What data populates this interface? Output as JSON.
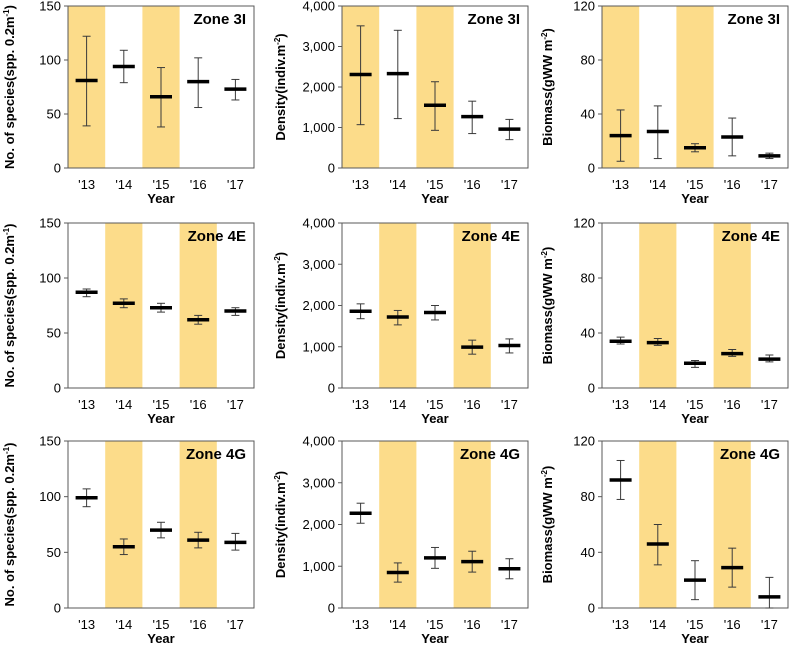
{
  "figure": {
    "x_title": "Year",
    "highlight_color": "#FCDC8A",
    "years": [
      "'13",
      "'14",
      "'15",
      "'16",
      "'17"
    ],
    "metrics": [
      {
        "key": "species",
        "ylabel": "No. of species(spp. 0.2m",
        "ylabel_sup": "-1",
        "ylabel_end": ")"
      },
      {
        "key": "density",
        "ylabel": "Density(indiv.m",
        "ylabel_sup": "-2",
        "ylabel_end": ")"
      },
      {
        "key": "biomass",
        "ylabel": "Biomass(gWW m",
        "ylabel_sup": "-2",
        "ylabel_end": ")"
      }
    ]
  },
  "chart_data": [
    {
      "type": "error-bar",
      "zone": "Zone 3I",
      "metric": "species",
      "categories": [
        "'13",
        "'14",
        "'15",
        "'16",
        "'17"
      ],
      "values": [
        81,
        94,
        66,
        80,
        73
      ],
      "err_low": [
        39,
        79,
        38,
        56,
        63
      ],
      "err_high": [
        122,
        109,
        93,
        102,
        82
      ],
      "highlighted": [
        "'13",
        "'15"
      ],
      "ylim": [
        0,
        150
      ],
      "yticks": [
        "0",
        "50",
        "100",
        "150"
      ]
    },
    {
      "type": "error-bar",
      "zone": "Zone 3I",
      "metric": "density",
      "categories": [
        "'13",
        "'14",
        "'15",
        "'16",
        "'17"
      ],
      "values": [
        2310,
        2330,
        1550,
        1270,
        960
      ],
      "err_low": [
        1070,
        1220,
        930,
        850,
        700
      ],
      "err_high": [
        3510,
        3400,
        2130,
        1650,
        1200
      ],
      "highlighted": [
        "'13",
        "'15"
      ],
      "ylim": [
        0,
        4000
      ],
      "yticks": [
        "0",
        "1,000",
        "2,000",
        "3,000",
        "4,000"
      ]
    },
    {
      "type": "error-bar",
      "zone": "Zone 3I",
      "metric": "biomass",
      "categories": [
        "'13",
        "'14",
        "'15",
        "'16",
        "'17"
      ],
      "values": [
        24,
        27,
        15,
        23,
        9
      ],
      "err_low": [
        5,
        7,
        12,
        9,
        7
      ],
      "err_high": [
        43,
        46,
        18,
        37,
        11
      ],
      "highlighted": [
        "'13",
        "'15"
      ],
      "ylim": [
        0,
        120
      ],
      "yticks": [
        "0",
        "40",
        "80",
        "120"
      ]
    },
    {
      "type": "error-bar",
      "zone": "Zone 4E",
      "metric": "species",
      "categories": [
        "'13",
        "'14",
        "'15",
        "'16",
        "'17"
      ],
      "values": [
        87,
        77,
        73,
        62,
        70
      ],
      "err_low": [
        83,
        73,
        69,
        58,
        66
      ],
      "err_high": [
        90,
        81,
        77,
        66,
        73
      ],
      "highlighted": [
        "'14",
        "'16"
      ],
      "ylim": [
        0,
        150
      ],
      "yticks": [
        "0",
        "50",
        "100",
        "150"
      ]
    },
    {
      "type": "error-bar",
      "zone": "Zone 4E",
      "metric": "density",
      "categories": [
        "'13",
        "'14",
        "'15",
        "'16",
        "'17"
      ],
      "values": [
        1860,
        1720,
        1830,
        990,
        1030
      ],
      "err_low": [
        1680,
        1530,
        1650,
        820,
        850
      ],
      "err_high": [
        2040,
        1880,
        2000,
        1160,
        1190
      ],
      "highlighted": [
        "'14",
        "'16"
      ],
      "ylim": [
        0,
        4000
      ],
      "yticks": [
        "0",
        "1,000",
        "2,000",
        "3,000",
        "4,000"
      ]
    },
    {
      "type": "error-bar",
      "zone": "Zone 4E",
      "metric": "biomass",
      "categories": [
        "'13",
        "'14",
        "'15",
        "'16",
        "'17"
      ],
      "values": [
        34,
        33,
        18,
        25,
        21
      ],
      "err_low": [
        32,
        31,
        15,
        23,
        19
      ],
      "err_high": [
        37,
        36,
        20,
        28,
        24
      ],
      "highlighted": [
        "'14",
        "'16"
      ],
      "ylim": [
        0,
        120
      ],
      "yticks": [
        "0",
        "40",
        "80",
        "120"
      ]
    },
    {
      "type": "error-bar",
      "zone": "Zone 4G",
      "metric": "species",
      "categories": [
        "'13",
        "'14",
        "'15",
        "'16",
        "'17"
      ],
      "values": [
        99,
        55,
        70,
        61,
        59
      ],
      "err_low": [
        91,
        48,
        63,
        54,
        52
      ],
      "err_high": [
        107,
        62,
        77,
        68,
        67
      ],
      "highlighted": [
        "'14",
        "'16"
      ],
      "ylim": [
        0,
        150
      ],
      "yticks": [
        "0",
        "50",
        "100",
        "150"
      ]
    },
    {
      "type": "error-bar",
      "zone": "Zone 4G",
      "metric": "density",
      "categories": [
        "'13",
        "'14",
        "'15",
        "'16",
        "'17"
      ],
      "values": [
        2270,
        850,
        1200,
        1110,
        940
      ],
      "err_low": [
        2030,
        620,
        950,
        860,
        700
      ],
      "err_high": [
        2510,
        1080,
        1450,
        1360,
        1180
      ],
      "highlighted": [
        "'14",
        "'16"
      ],
      "ylim": [
        0,
        4000
      ],
      "yticks": [
        "0",
        "1,000",
        "2,000",
        "3,000",
        "4,000"
      ]
    },
    {
      "type": "error-bar",
      "zone": "Zone 4G",
      "metric": "biomass",
      "categories": [
        "'13",
        "'14",
        "'15",
        "'16",
        "'17"
      ],
      "values": [
        92,
        46,
        20,
        29,
        8
      ],
      "err_low": [
        78,
        31,
        6,
        15,
        0
      ],
      "err_high": [
        106,
        60,
        34,
        43,
        22
      ],
      "highlighted": [
        "'14",
        "'16"
      ],
      "ylim": [
        0,
        120
      ],
      "yticks": [
        "0",
        "40",
        "80",
        "120"
      ]
    }
  ]
}
